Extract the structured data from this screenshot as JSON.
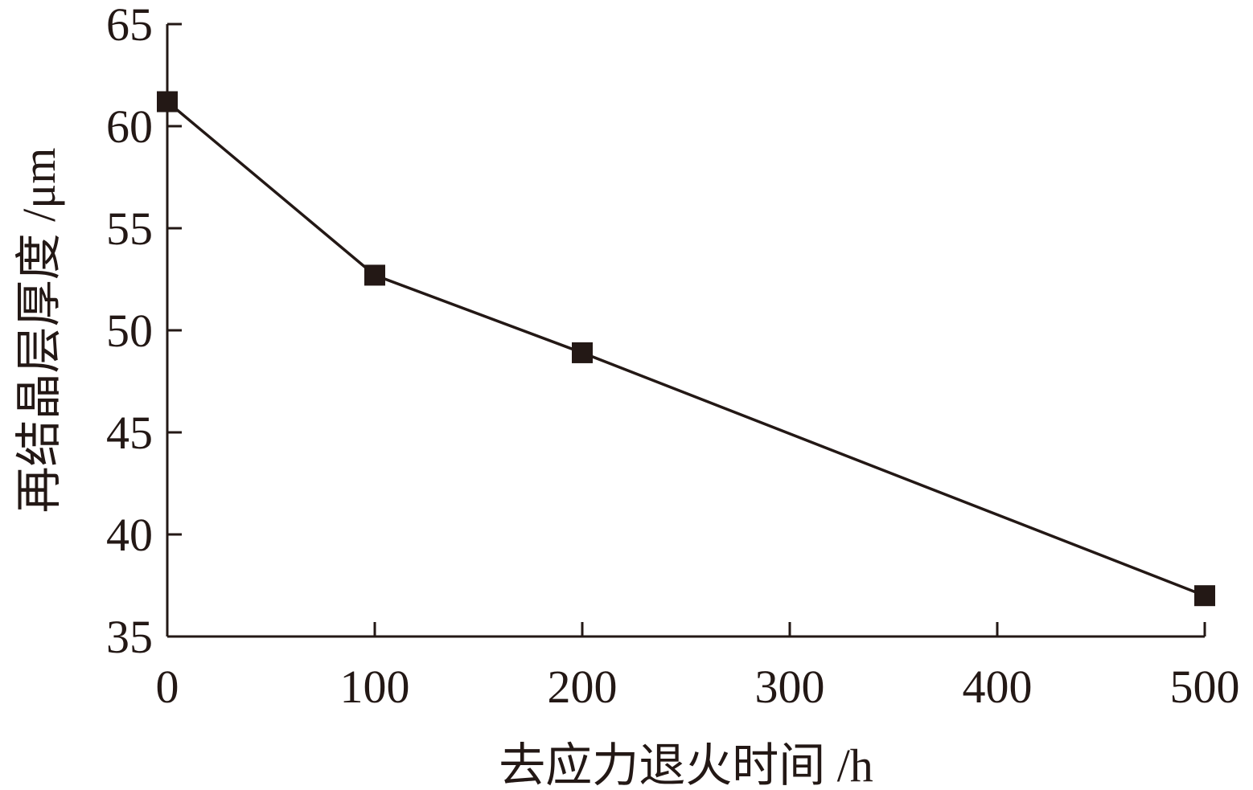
{
  "chart_data": {
    "type": "line",
    "title": "",
    "xlabel": "去应力退火时间 /h",
    "ylabel": "再结晶层厚度 /μm",
    "xlim": [
      0,
      500
    ],
    "ylim": [
      35,
      65
    ],
    "xticks": [
      0,
      100,
      200,
      300,
      400,
      500
    ],
    "yticks": [
      35,
      40,
      45,
      50,
      55,
      60,
      65
    ],
    "grid": false,
    "marker": "square",
    "color": "#231815",
    "series": [
      {
        "x": [
          0,
          100,
          200,
          500
        ],
        "y": [
          61.2,
          52.7,
          48.9,
          37.0
        ]
      }
    ]
  }
}
